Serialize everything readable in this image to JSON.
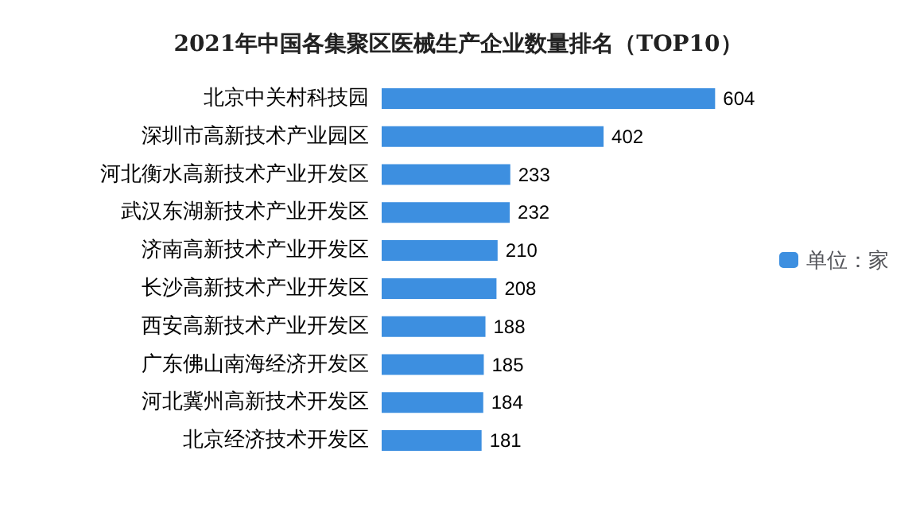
{
  "chart_data": {
    "type": "bar",
    "orientation": "horizontal",
    "title": "2021年中国各集聚区医械生产企业数量排名（TOP10）",
    "categories": [
      "北京中关村科技园",
      "深圳市高新技术产业园区",
      "河北衡水高新技术产业开发区",
      "武汉东湖新技术产业开发区",
      "济南高新技术产业开发区",
      "长沙高新技术产业开发区",
      "西安高新技术产业开发区",
      "广东佛山南海经济开发区",
      "河北冀州高新技术开发区",
      "北京经济技术开发区"
    ],
    "series": [
      {
        "name": "单位：家",
        "color": "#3d8fe0",
        "values": [
          604,
          402,
          233,
          232,
          210,
          208,
          188,
          185,
          184,
          181
        ]
      }
    ],
    "data_labels": true,
    "legend": "right"
  }
}
